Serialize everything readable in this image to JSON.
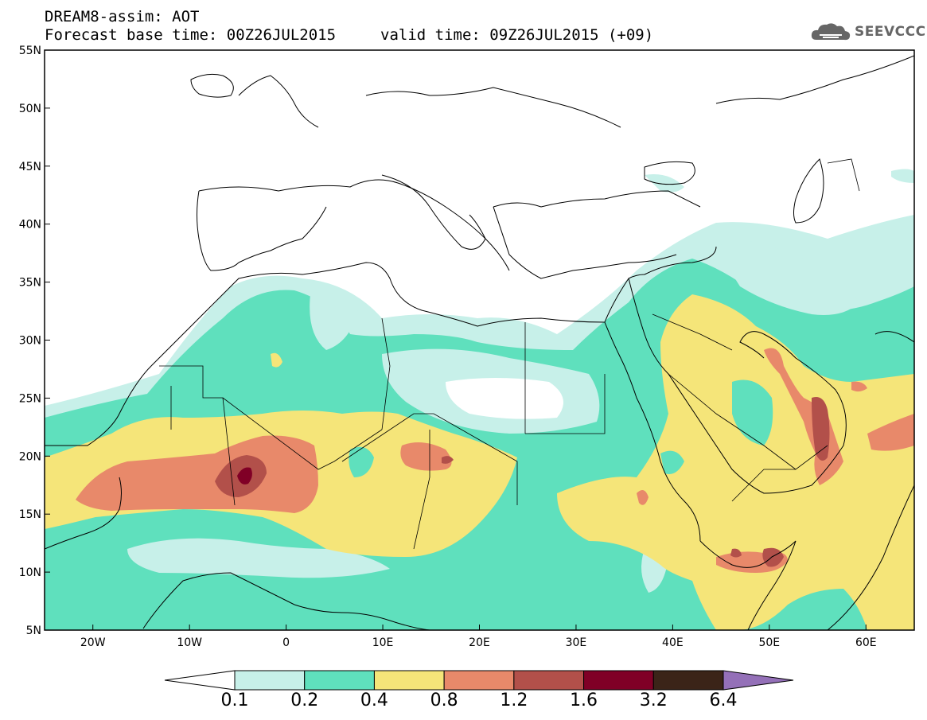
{
  "header": {
    "model_line": "DREAM8-assim: AOT",
    "base_time_line": "Forecast base time: 00Z26JUL2015",
    "valid_time_line": "valid time: 09Z26JUL2015 (+09)",
    "logo_text": "SEEVCCC"
  },
  "map": {
    "lat_labels": [
      "55N",
      "50N",
      "45N",
      "40N",
      "35N",
      "30N",
      "25N",
      "20N",
      "15N",
      "10N",
      "5N"
    ],
    "lon_labels": [
      "20W",
      "10W",
      "0",
      "10E",
      "20E",
      "30E",
      "40E",
      "50E",
      "60E"
    ]
  },
  "colorbar": {
    "labels": [
      "0.1",
      "0.2",
      "0.4",
      "0.8",
      "1.2",
      "1.6",
      "3.2",
      "6.4"
    ],
    "colors": [
      "#ffffff",
      "#c7f0e9",
      "#5fe0bd",
      "#f5e579",
      "#e8896a",
      "#b2504a",
      "#800026",
      "#3b2418",
      "#9470b8"
    ]
  },
  "palette": {
    "c1": "#c7f0e9",
    "c2": "#5fe0bd",
    "c3": "#f5e579",
    "c4": "#e8896a",
    "c5": "#b2504a",
    "c6": "#800026"
  }
}
